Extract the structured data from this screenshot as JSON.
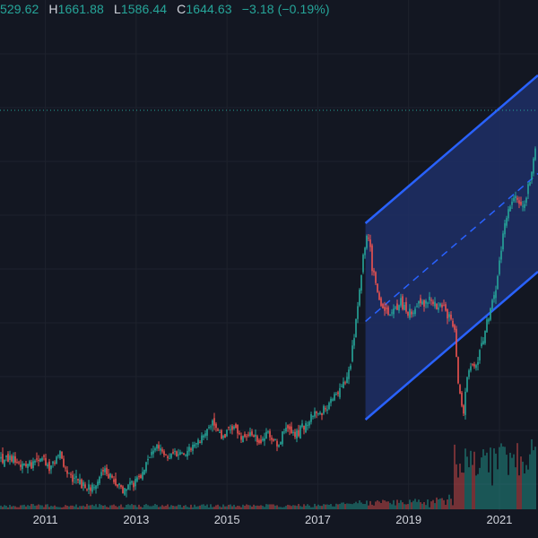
{
  "legend": {
    "open_value": "529.62",
    "high_label": "H",
    "high_value": "1661.88",
    "low_label": "L",
    "low_value": "1586.44",
    "close_label": "C",
    "close_value": "1644.63",
    "change_value": "−3.18 (−0.19%)"
  },
  "colors": {
    "background": "#131722",
    "grid": "#1e222d",
    "up": "#26a69a",
    "down": "#ef5350",
    "channel_line": "#2962ff",
    "channel_fill": "#1e2f66",
    "price_line": "#26a69a"
  },
  "chart_data": {
    "type": "candlestick",
    "x_axis_ticks": [
      "2011",
      "2013",
      "2015",
      "2017",
      "2019",
      "2021"
    ],
    "close_series": [
      [
        2010.0,
        0.3
      ],
      [
        2010.3,
        0.29
      ],
      [
        2010.6,
        0.27
      ],
      [
        2010.9,
        0.3
      ],
      [
        2011.1,
        0.26
      ],
      [
        2011.3,
        0.31
      ],
      [
        2011.5,
        0.24
      ],
      [
        2011.7,
        0.21
      ],
      [
        2011.9,
        0.18
      ],
      [
        2012.1,
        0.2
      ],
      [
        2012.3,
        0.25
      ],
      [
        2012.5,
        0.22
      ],
      [
        2012.7,
        0.18
      ],
      [
        2012.9,
        0.2
      ],
      [
        2013.1,
        0.22
      ],
      [
        2013.3,
        0.32
      ],
      [
        2013.5,
        0.35
      ],
      [
        2013.7,
        0.3
      ],
      [
        2013.9,
        0.32
      ],
      [
        2014.1,
        0.31
      ],
      [
        2014.3,
        0.36
      ],
      [
        2014.5,
        0.38
      ],
      [
        2014.7,
        0.42
      ],
      [
        2014.9,
        0.37
      ],
      [
        2015.1,
        0.42
      ],
      [
        2015.3,
        0.38
      ],
      [
        2015.5,
        0.39
      ],
      [
        2015.7,
        0.35
      ],
      [
        2015.9,
        0.4
      ],
      [
        2016.1,
        0.35
      ],
      [
        2016.3,
        0.4
      ],
      [
        2016.5,
        0.38
      ],
      [
        2016.7,
        0.42
      ],
      [
        2016.9,
        0.46
      ],
      [
        2017.1,
        0.47
      ],
      [
        2017.3,
        0.52
      ],
      [
        2017.5,
        0.55
      ],
      [
        2017.7,
        0.62
      ],
      [
        2017.8,
        0.75
      ],
      [
        2017.9,
        0.9
      ],
      [
        2018.0,
        1.05
      ],
      [
        2018.1,
        1.15
      ],
      [
        2018.2,
        1.0
      ],
      [
        2018.4,
        0.85
      ],
      [
        2018.6,
        0.82
      ],
      [
        2018.8,
        0.88
      ],
      [
        2019.0,
        0.84
      ],
      [
        2019.2,
        0.86
      ],
      [
        2019.4,
        0.88
      ],
      [
        2019.6,
        0.86
      ],
      [
        2019.8,
        0.85
      ],
      [
        2020.0,
        0.8
      ],
      [
        2020.1,
        0.58
      ],
      [
        2020.2,
        0.45
      ],
      [
        2020.3,
        0.62
      ],
      [
        2020.5,
        0.65
      ],
      [
        2020.7,
        0.78
      ],
      [
        2020.9,
        0.92
      ],
      [
        2021.0,
        1.02
      ],
      [
        2021.1,
        1.15
      ],
      [
        2021.3,
        1.28
      ],
      [
        2021.5,
        1.22
      ],
      [
        2021.7,
        1.35
      ],
      [
        2021.8,
        1.45
      ]
    ],
    "channel": {
      "start_x": 2018.05,
      "end_x": 2021.85,
      "upper_start": 1.17,
      "upper_end": 1.72,
      "lower_start": 0.44,
      "lower_end": 0.99,
      "mid_start": 0.805,
      "mid_end": 1.355
    },
    "last_price_level": 1.45
  }
}
